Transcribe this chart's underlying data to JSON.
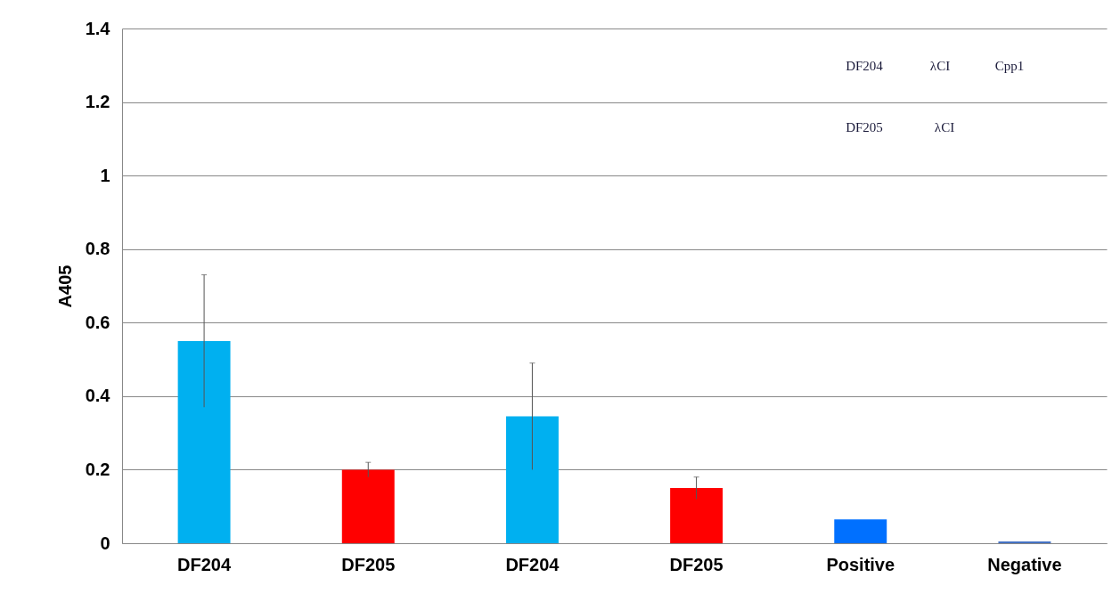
{
  "chart_data": {
    "type": "bar",
    "ylabel": "A405",
    "categories": [
      "DF204",
      "DF205",
      "DF204",
      "DF205",
      "Positive",
      "Negative"
    ],
    "values": [
      0.55,
      0.2,
      0.345,
      0.15,
      0.065,
      0.005
    ],
    "errors": [
      0.18,
      0.02,
      0.145,
      0.03,
      null,
      null
    ],
    "colors": [
      "#00b0f0",
      "#ff0000",
      "#00b0f0",
      "#ff0000",
      "#0070ff",
      "#4472c4"
    ],
    "ylim": [
      0,
      1.4
    ],
    "yticks": [
      0,
      0.2,
      0.4,
      0.6,
      0.8,
      1,
      1.2,
      1.4
    ],
    "grid": "y",
    "annotations": [
      "DF204",
      "λCI",
      "Cpp1",
      "DF205",
      "λCI"
    ]
  }
}
